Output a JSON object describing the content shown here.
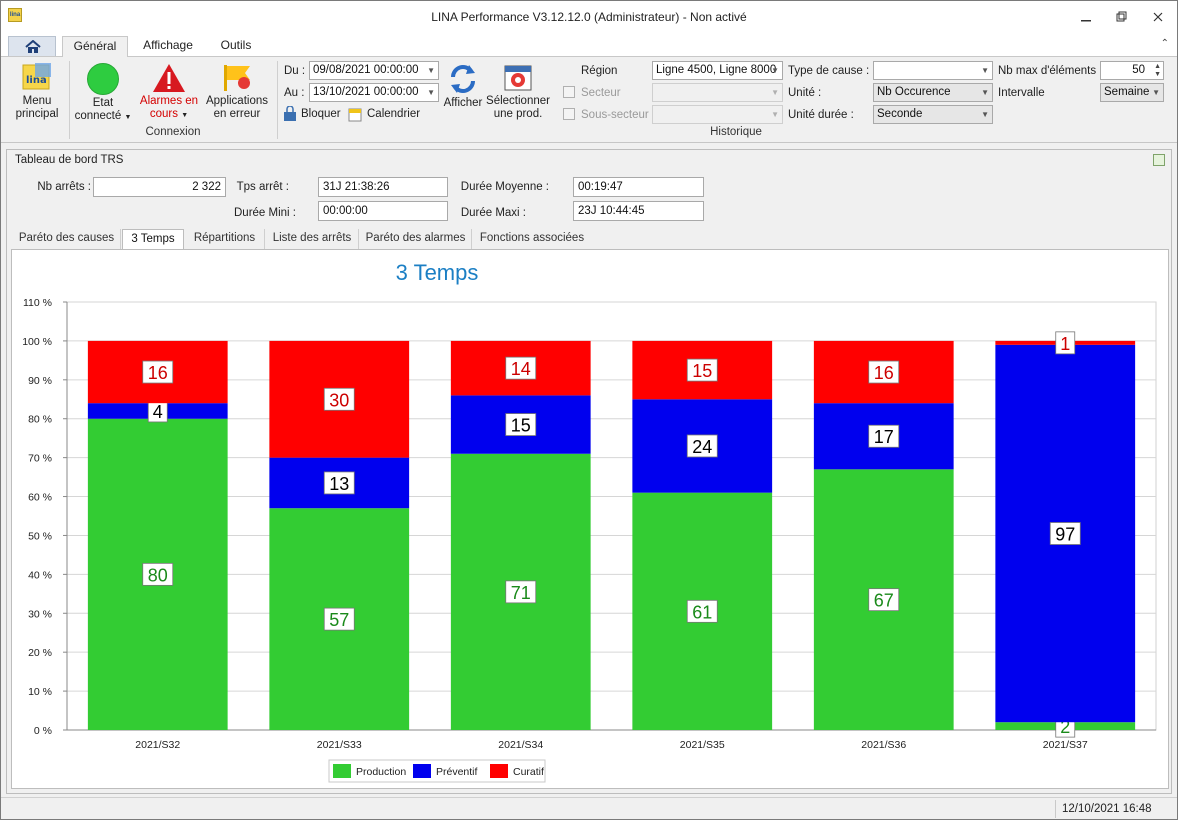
{
  "window": {
    "title": "LINA Performance  V3.12.12.0  (Administrateur) - Non activé",
    "app_icon_text": "lina",
    "minimize_icon": "minimize-icon",
    "maximize_icon": "maximize-icon",
    "close_icon": "close-icon"
  },
  "ribbon_tabs": [
    "Général",
    "Affichage",
    "Outils"
  ],
  "ribbon": {
    "menu_principal": {
      "line1": "Menu",
      "line2": "principal",
      "icon": "lina-logo-icon"
    },
    "etat": {
      "line1": "Etat",
      "line2": "connecté",
      "status_color": "#2ecc40"
    },
    "alarmes": {
      "line1": "Alarmes en",
      "line2": "cours",
      "icon": "warning-icon"
    },
    "applications": {
      "line1": "Applications",
      "line2": "en erreur",
      "icon": "flag-icon"
    },
    "connexion_label": "Connexion",
    "du_label": "Du :",
    "du_value": "09/08/2021 00:00:00",
    "au_label": "Au :",
    "au_value": "13/10/2021 00:00:00",
    "bloquer": "Bloquer",
    "calendrier": "Calendrier",
    "afficher": "Afficher",
    "selectionner_line1": "Sélectionner",
    "selectionner_line2": "une prod.",
    "region_label": "Région",
    "region_value": "Ligne 4500, Ligne 8000",
    "secteur_label": "Secteur",
    "sous_secteur_label": "Sous-secteur",
    "historique_label": "Historique",
    "type_cause_label": "Type de cause :",
    "type_cause_value": "",
    "unite_label": "Unité :",
    "unite_value": "Nb Occurence",
    "unite_duree_label": "Unité durée :",
    "unite_duree_value": "Seconde",
    "nb_max_label": "Nb max d'éléments",
    "nb_max_value": "50",
    "intervalle_label": "Intervalle",
    "intervalle_value": "Semaine"
  },
  "panel": {
    "title": "Tableau de bord TRS",
    "nb_arrets_label": "Nb arrêts :",
    "nb_arrets_value": "2 322",
    "tps_arret_label": "Tps arrêt :",
    "tps_arret_value": "31J 21:38:26",
    "duree_moyenne_label": "Durée Moyenne :",
    "duree_moyenne_value": "00:19:47",
    "duree_mini_label": "Durée Mini :",
    "duree_mini_value": "00:00:00",
    "duree_maxi_label": "Durée Maxi :",
    "duree_maxi_value": "23J 10:44:45"
  },
  "content_tabs": [
    "Paréto des causes",
    "3 Temps",
    "Répartitions",
    "Liste des arrêts",
    "Paréto des alarmes",
    "Fonctions associées"
  ],
  "chart_data": {
    "type": "bar",
    "stacked": true,
    "title": "3 Temps",
    "categories": [
      "2021/S32",
      "2021/S33",
      "2021/S34",
      "2021/S35",
      "2021/S36",
      "2021/S37"
    ],
    "series": [
      {
        "name": "Production",
        "color": "#33cc33",
        "label_color": "#1a8a1a",
        "values": [
          80,
          57,
          71,
          61,
          67,
          2
        ]
      },
      {
        "name": "Préventif",
        "color": "#0000ee",
        "label_color": "#000000",
        "values": [
          4,
          13,
          15,
          24,
          17,
          97
        ]
      },
      {
        "name": "Curatif",
        "color": "#ff0000",
        "label_color": "#cc0000",
        "values": [
          16,
          30,
          14,
          15,
          16,
          1
        ]
      }
    ],
    "ylim": [
      0,
      110
    ],
    "yticks": [
      0,
      10,
      20,
      30,
      40,
      50,
      60,
      70,
      80,
      90,
      100,
      110
    ],
    "ytick_suffix": " %",
    "grid": true,
    "legend_position": "bottom"
  },
  "status": {
    "datetime": "12/10/2021 16:48"
  }
}
